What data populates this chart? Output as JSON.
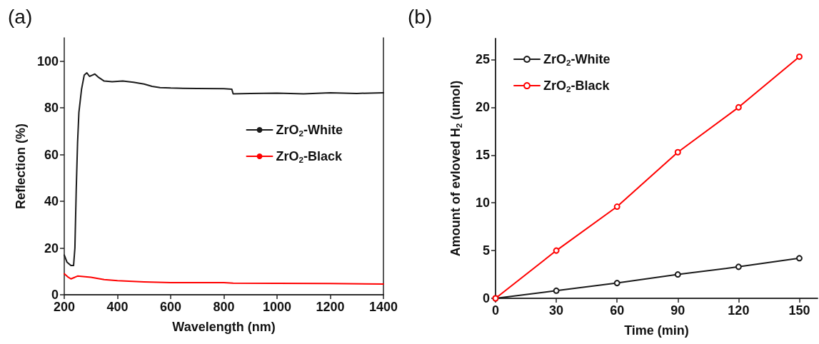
{
  "chart_data": [
    {
      "type": "line",
      "title": "(a)",
      "xlabel": "Wavelength (nm)",
      "ylabel": "Reflection (%)",
      "xlim": [
        200,
        1400
      ],
      "xticks": [
        200,
        400,
        600,
        800,
        1000,
        1200,
        1400
      ],
      "ylim": [
        0,
        110
      ],
      "yticks": [
        0,
        20,
        40,
        60,
        80,
        100
      ],
      "grid": false,
      "legend": "right",
      "marker": "none",
      "line_style": "solid",
      "series": [
        {
          "name": "ZrO$_{2}$-White",
          "color": "#1a1a1a",
          "x": [
            200,
            210,
            225,
            235,
            240,
            245,
            250,
            255,
            265,
            275,
            285,
            295,
            305,
            315,
            330,
            350,
            380,
            420,
            460,
            500,
            530,
            560,
            600,
            700,
            800,
            830,
            835,
            900,
            1000,
            1100,
            1200,
            1300,
            1400
          ],
          "values": [
            17,
            14,
            12.5,
            12.5,
            20,
            45,
            65,
            78,
            88,
            94,
            95,
            93.5,
            94,
            94.5,
            93,
            91.5,
            91.2,
            91.5,
            91,
            90.2,
            89.2,
            88.7,
            88.5,
            88.3,
            88.2,
            88,
            86,
            86.2,
            86.3,
            86,
            86.5,
            86.2,
            86.5
          ]
        },
        {
          "name": "ZrO$_{2}$-Black",
          "color": "#ff0000",
          "x": [
            200,
            215,
            225,
            240,
            250,
            300,
            350,
            400,
            500,
            600,
            800,
            835,
            1000,
            1200,
            1400
          ],
          "values": [
            9,
            7.5,
            6.8,
            7.5,
            8,
            7.5,
            6.5,
            6,
            5.5,
            5.2,
            5.2,
            5,
            4.9,
            4.8,
            4.6
          ]
        }
      ]
    },
    {
      "type": "line",
      "title": "(b)",
      "xlabel": "Time (min)",
      "ylabel": "Amount of evloved H$_{2}$ (umol)",
      "xlim": [
        0,
        159
      ],
      "xticks": [
        0,
        30,
        60,
        90,
        120,
        150
      ],
      "ylim": [
        0,
        27.2
      ],
      "yticks": [
        0,
        5,
        10,
        15,
        20,
        25
      ],
      "grid": false,
      "legend": "top left",
      "marker": "circle",
      "line_style": "solid",
      "series": [
        {
          "name": "ZrO$_{2}$-White",
          "color": "#1a1a1a",
          "x": [
            0,
            30,
            60,
            90,
            120,
            150
          ],
          "values": [
            0,
            0.8,
            1.6,
            2.5,
            3.3,
            4.2
          ]
        },
        {
          "name": "ZrO$_{2}$-Black",
          "color": "#ff0000",
          "x": [
            0,
            30,
            60,
            90,
            120,
            150
          ],
          "values": [
            0,
            5,
            9.6,
            15.3,
            20,
            25.3
          ]
        }
      ]
    }
  ]
}
